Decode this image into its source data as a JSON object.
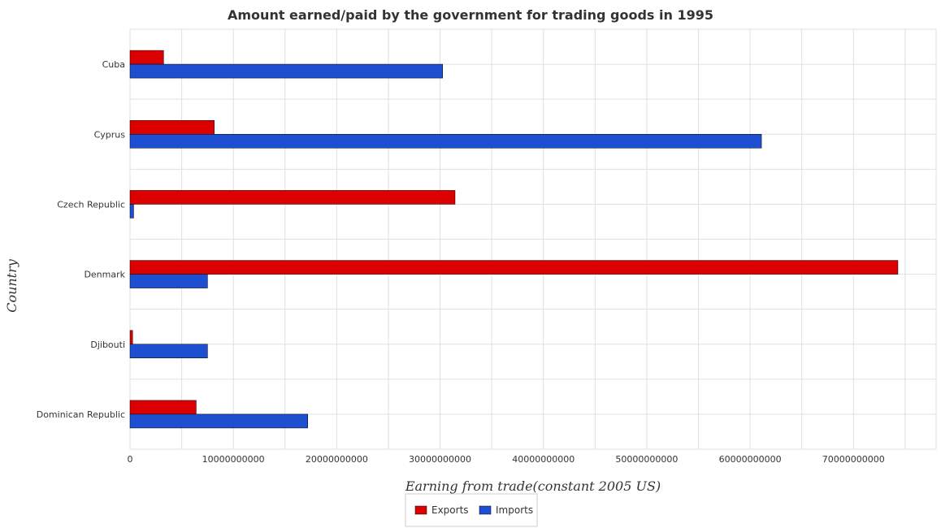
{
  "colors": {
    "exports": "#dd0000",
    "imports": "#1f4fd1"
  },
  "chart_data": {
    "type": "bar",
    "orientation": "horizontal",
    "title": "Amount earned/paid by the government for trading goods in 1995",
    "xlabel": "Earning from trade(constant 2005 US)",
    "ylabel": "Country",
    "categories": [
      "Cuba",
      "Cyprus",
      "Czech Republic",
      "Denmark",
      "Djibouti",
      "Dominican Republic"
    ],
    "series": [
      {
        "name": "Exports",
        "values": [
          3250000000,
          8150000000,
          31450000000,
          74300000000,
          250000000,
          6400000000
        ]
      },
      {
        "name": "Imports",
        "values": [
          30250000000,
          61100000000,
          350000000,
          7500000000,
          7500000000,
          17200000000
        ]
      }
    ],
    "xlim": [
      0,
      78000000000
    ],
    "xticks": [
      0,
      10000000000,
      20000000000,
      30000000000,
      40000000000,
      50000000000,
      60000000000,
      70000000000
    ],
    "xtick_labels": [
      "0",
      "10000000000",
      "20000000000",
      "30000000000",
      "40000000000",
      "50000000000",
      "60000000000",
      "70000000000"
    ],
    "grid": true,
    "legend_position": "bottom-center"
  }
}
